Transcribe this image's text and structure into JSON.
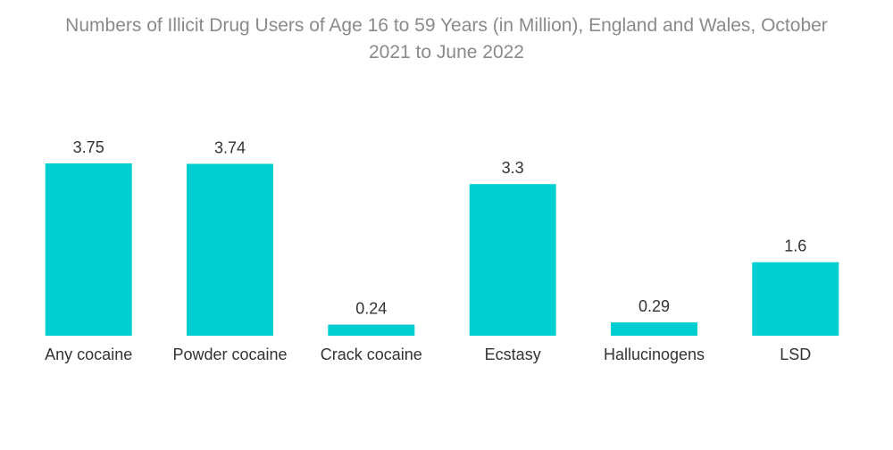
{
  "chart_data": {
    "type": "bar",
    "title_line1": "Numbers of Illicit Drug Users of Age 16 to 59 Years (in Million), England and Wales, October",
    "title_line2": "2021 to June 2022",
    "categories": [
      "Any cocaine",
      "Powder cocaine",
      "Crack cocaine",
      "Ecstasy",
      "Hallucinogens",
      "LSD"
    ],
    "values": [
      3.75,
      3.74,
      0.24,
      3.3,
      0.29,
      1.6
    ],
    "value_labels": [
      "3.75",
      "3.74",
      "0.24",
      "3.3",
      "0.29",
      "1.6"
    ],
    "ylim": [
      0,
      3.75
    ],
    "grid": false,
    "bar_color": "#00CED1"
  }
}
